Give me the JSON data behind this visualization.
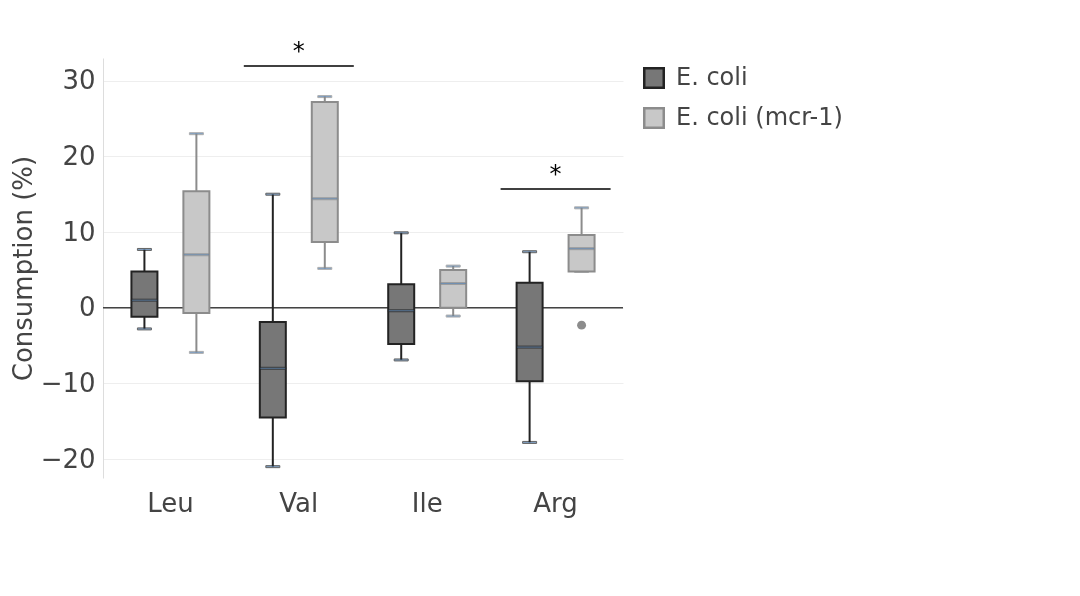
{
  "chart_data": {
    "type": "box",
    "ylabel": "Consumption (%)",
    "categories": [
      "Leu",
      "Val",
      "Ile",
      "Arg"
    ],
    "series": [
      {
        "name": "E. coli",
        "color": "#777777",
        "boxes": [
          {
            "low": -2.8,
            "q1": -1.2,
            "median": 1.0,
            "q3": 4.8,
            "high": 7.7
          },
          {
            "low": -21,
            "q1": -14.5,
            "median": -8.0,
            "q3": -1.9,
            "high": 15
          },
          {
            "low": -6.9,
            "q1": -4.8,
            "median": -0.4,
            "q3": 3.1,
            "high": 9.9
          },
          {
            "low": -17.8,
            "q1": -9.7,
            "median": -5.2,
            "q3": 3.3,
            "high": 7.4
          }
        ]
      },
      {
        "name": "E. coli (mcr-1)",
        "color": "#c8c8c8",
        "boxes": [
          {
            "low": -5.9,
            "q1": -0.7,
            "median": 7.0,
            "q3": 15.4,
            "high": 23
          },
          {
            "low": 5.2,
            "q1": 8.7,
            "median": 14.4,
            "q3": 27.2,
            "high": 27.9
          },
          {
            "low": -1.1,
            "q1": 0,
            "median": 3.2,
            "q3": 5.0,
            "high": 5.5
          },
          {
            "low": 4.8,
            "q1": 4.8,
            "median": 7.8,
            "q3": 9.6,
            "high": 13.2,
            "outliers": [
              -2.3
            ]
          }
        ]
      }
    ],
    "ylim": [
      -22.5,
      33
    ],
    "yticks": [
      -20,
      -10,
      0,
      10,
      20,
      30
    ],
    "grid": "y",
    "legend": "top right",
    "ref_lines": [
      {
        "axis": "y",
        "value": 0,
        "color": "#444444"
      }
    ],
    "annotations": [
      "*",
      "*"
    ]
  }
}
